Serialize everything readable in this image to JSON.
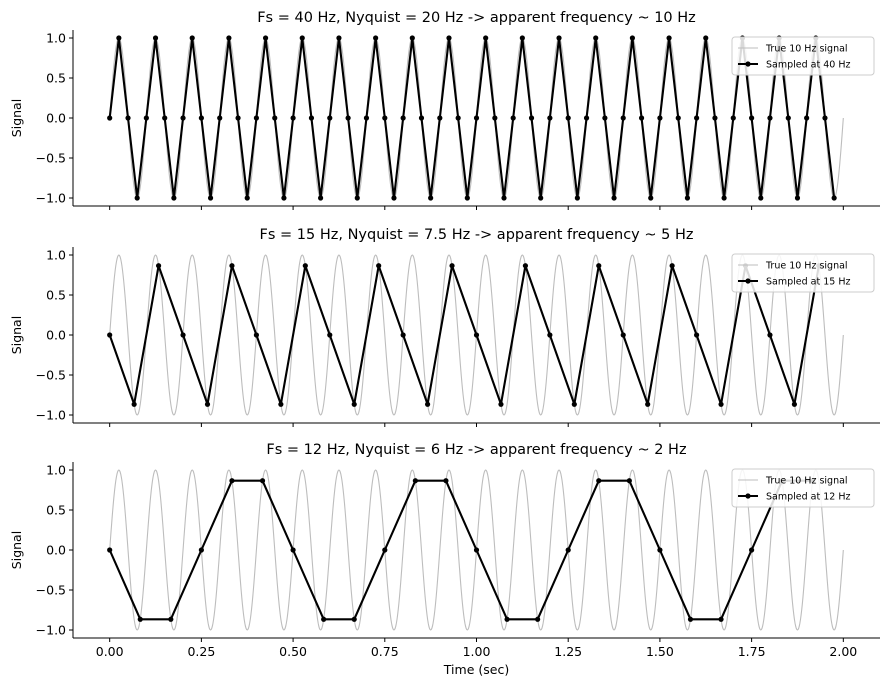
{
  "chart_data": [
    {
      "type": "line",
      "title": "Fs = 40 Hz, Nyquist = 20 Hz -> apparent frequency ~ 10 Hz",
      "xlabel": "",
      "ylabel": "Signal",
      "xlim": [
        -0.1,
        2.1
      ],
      "ylim": [
        -1.1,
        1.1
      ],
      "xticks": [
        0,
        0.25,
        0.5,
        0.75,
        1.0,
        1.25,
        1.5,
        1.75,
        2.0
      ],
      "xticklabels": [],
      "yticks": [
        -1.0,
        -0.5,
        0.0,
        0.5,
        1.0
      ],
      "yticklabels": [
        "−1.0",
        "−0.5",
        "0.0",
        "0.5",
        "1.0"
      ],
      "legend": "top-right",
      "grid": false,
      "series": [
        {
          "name": "True 10 Hz signal",
          "kind": "continuous",
          "frequency_hz": 10,
          "x_range": [
            0,
            2
          ],
          "color": "#bdbdbd"
        },
        {
          "name": "Sampled at 40 Hz",
          "kind": "sampled",
          "sample_rate_hz": 40,
          "x_range": [
            0,
            2
          ],
          "color": "#000000",
          "marker": "dot"
        }
      ]
    },
    {
      "type": "line",
      "title": "Fs = 15 Hz, Nyquist = 7.5 Hz -> apparent frequency ~ 5 Hz",
      "xlabel": "",
      "ylabel": "Signal",
      "xlim": [
        -0.1,
        2.1
      ],
      "ylim": [
        -1.1,
        1.1
      ],
      "xticks": [
        0,
        0.25,
        0.5,
        0.75,
        1.0,
        1.25,
        1.5,
        1.75,
        2.0
      ],
      "xticklabels": [],
      "yticks": [
        -1.0,
        -0.5,
        0.0,
        0.5,
        1.0
      ],
      "yticklabels": [
        "−1.0",
        "−0.5",
        "0.0",
        "0.5",
        "1.0"
      ],
      "legend": "top-right",
      "grid": false,
      "series": [
        {
          "name": "True 10 Hz signal",
          "kind": "continuous",
          "frequency_hz": 10,
          "x_range": [
            0,
            2
          ],
          "color": "#bdbdbd"
        },
        {
          "name": "Sampled at 15 Hz",
          "kind": "sampled",
          "sample_rate_hz": 15,
          "x_range": [
            0,
            2
          ],
          "color": "#000000",
          "marker": "dot"
        }
      ]
    },
    {
      "type": "line",
      "title": "Fs = 12 Hz, Nyquist = 6 Hz -> apparent frequency ~ 2 Hz",
      "xlabel": "Time (sec)",
      "ylabel": "Signal",
      "xlim": [
        -0.1,
        2.1
      ],
      "ylim": [
        -1.1,
        1.1
      ],
      "xticks": [
        0,
        0.25,
        0.5,
        0.75,
        1.0,
        1.25,
        1.5,
        1.75,
        2.0
      ],
      "xticklabels": [
        "0.00",
        "0.25",
        "0.50",
        "0.75",
        "1.00",
        "1.25",
        "1.50",
        "1.75",
        "2.00"
      ],
      "yticks": [
        -1.0,
        -0.5,
        0.0,
        0.5,
        1.0
      ],
      "yticklabels": [
        "−1.0",
        "−0.5",
        "0.0",
        "0.5",
        "1.0"
      ],
      "legend": "top-right",
      "grid": false,
      "series": [
        {
          "name": "True 10 Hz signal",
          "kind": "continuous",
          "frequency_hz": 10,
          "x_range": [
            0,
            2
          ],
          "color": "#bdbdbd"
        },
        {
          "name": "Sampled at 12 Hz",
          "kind": "sampled",
          "sample_rate_hz": 12,
          "x_range": [
            0,
            2
          ],
          "color": "#000000",
          "marker": "dot"
        }
      ]
    }
  ]
}
